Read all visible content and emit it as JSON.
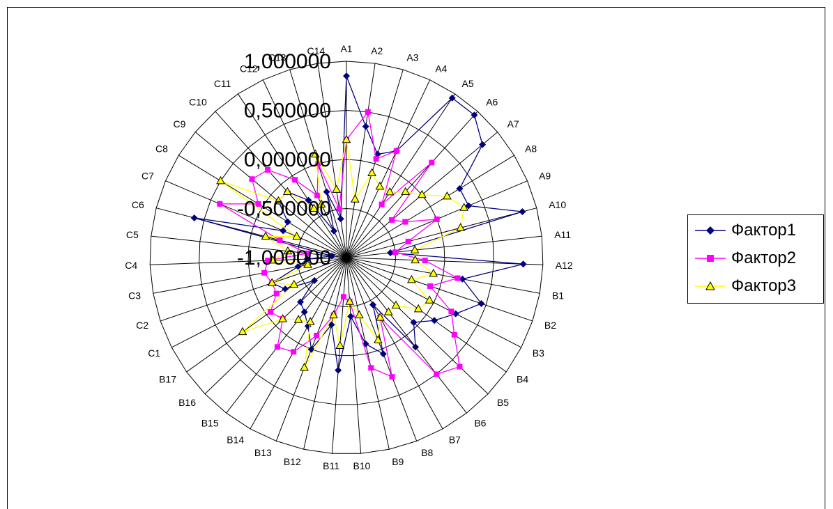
{
  "chart_data": {
    "type": "radar",
    "categories": [
      "A1",
      "A2",
      "A3",
      "A4",
      "A5",
      "A6",
      "A7",
      "A8",
      "A9",
      "A10",
      "A11",
      "A12",
      "B1",
      "B2",
      "B3",
      "B4",
      "B5",
      "B6",
      "B7",
      "B8",
      "B9",
      "B10",
      "B11",
      "B12",
      "B13",
      "B14",
      "B15",
      "B16",
      "B17",
      "C1",
      "C2",
      "C3",
      "C4",
      "C5",
      "C6",
      "C7",
      "C8",
      "C9",
      "C10",
      "C11",
      "C12",
      "C13",
      "C14"
    ],
    "tick_labels": [
      "-1,000000",
      "-0,500000",
      "0,000000",
      "0,500000",
      "1,000000"
    ],
    "rlim": [
      -1.0,
      1.0
    ],
    "grid": true,
    "legend_position": "right",
    "series": [
      {
        "name": "Фактор1",
        "color": "#000080",
        "marker": "diamond",
        "values": [
          0.85,
          0.35,
          0.1,
          0.2,
          0.95,
          0.95,
          0.8,
          0.35,
          0.35,
          0.85,
          -0.55,
          0.8,
          0.2,
          0.45,
          0.25,
          0.1,
          -0.05,
          0.15,
          -0.45,
          0.05,
          -0.1,
          -0.4,
          0.15,
          -0.3,
          0.0,
          -0.2,
          -0.3,
          -0.35,
          -0.6,
          -0.3,
          -0.2,
          -0.5,
          -0.6,
          -0.85,
          0.6,
          -0.3,
          -0.3,
          -0.1,
          -0.1,
          -0.3,
          -0.7,
          -0.3,
          -0.6
        ]
      },
      {
        "name": "Фактор2",
        "color": "#FF00FF",
        "marker": "square",
        "values": [
          0.2,
          0.5,
          0.05,
          0.2,
          -0.35,
          0.3,
          -0.4,
          -0.3,
          0.0,
          -0.35,
          -0.5,
          -0.2,
          0.15,
          -0.1,
          0.2,
          0.35,
          0.6,
          0.5,
          -0.3,
          0.3,
          0.15,
          -0.55,
          -0.6,
          -0.4,
          -0.15,
          0.1,
          0.15,
          -0.1,
          -0.05,
          -0.2,
          -0.2,
          -0.15,
          -0.2,
          -0.6,
          -0.3,
          0.4,
          0.05,
          0.25,
          0.2,
          -0.05,
          -0.3,
          0.0,
          -0.5
        ]
      },
      {
        "name": "Фактор3",
        "color": "#FFFF00",
        "marker": "triangle",
        "values": [
          0.2,
          -0.4,
          -0.1,
          -0.2,
          -0.2,
          -0.1,
          0.0,
          0.2,
          0.3,
          0.2,
          -0.3,
          -0.3,
          -0.1,
          -0.3,
          -0.05,
          -0.1,
          -0.3,
          -0.3,
          -0.3,
          -0.1,
          -0.4,
          -0.55,
          -0.1,
          -0.4,
          0.2,
          -0.25,
          -0.2,
          -0.1,
          0.3,
          -0.4,
          -0.2,
          -0.6,
          -0.25,
          -0.4,
          -0.15,
          -0.45,
          0.5,
          -0.1,
          -0.1,
          -0.4,
          -0.4,
          0.1,
          -0.3
        ]
      }
    ]
  }
}
